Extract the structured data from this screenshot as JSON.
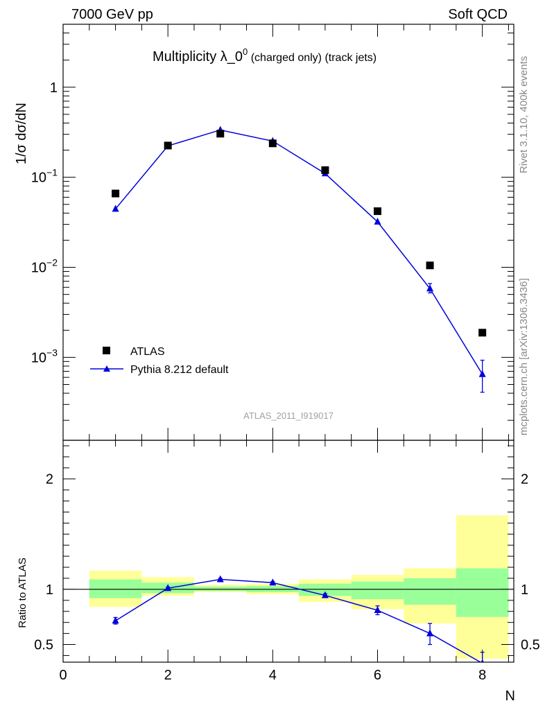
{
  "header": {
    "left": "7000 GeV pp",
    "right": "Soft QCD"
  },
  "title": {
    "main": "Multiplicity λ_0",
    "sup": "0",
    "sub": " (charged only) (track jets)"
  },
  "side_labels": {
    "rivet": "Rivet 3.1.10,  400k events",
    "mcplots": "mcplots.cern.ch [arXiv:1306.3436]"
  },
  "watermark": "ATLAS_2011_I919017",
  "legend": {
    "data_label": "ATLAS",
    "mc_label": "Pythia 8.212 default"
  },
  "colors": {
    "mc": "#0000dd",
    "band_inner": "#99ff99",
    "band_outer": "#ffff99",
    "data": "#000000"
  },
  "chart_data": [
    {
      "type": "scatter",
      "name": "main",
      "ylabel": "1/σ dσ/dN",
      "yscale": "log",
      "ylim": [
        0.00012,
        5
      ],
      "xlim": [
        0,
        8.6
      ],
      "ytick_labels": [
        "10^-3",
        "10^-2",
        "10^-1",
        "1"
      ],
      "ytick_values": [
        0.001,
        0.01,
        0.1,
        1
      ],
      "series": [
        {
          "name": "ATLAS",
          "x": [
            1,
            2,
            3,
            4,
            5,
            6,
            7,
            8
          ],
          "y": [
            0.066,
            0.225,
            0.305,
            0.238,
            0.12,
            0.042,
            0.0105,
            0.00188
          ]
        },
        {
          "name": "Pythia 8.212 default",
          "x": [
            1,
            2,
            3,
            4,
            5,
            6,
            7,
            8
          ],
          "y": [
            0.0445,
            0.223,
            0.335,
            0.252,
            0.11,
            0.032,
            0.0058,
            0.00065
          ],
          "err_low": [
            0,
            0,
            0,
            0,
            0,
            0,
            0.0006,
            0.00024
          ],
          "err_high": [
            0,
            0,
            0,
            0,
            0,
            0,
            0.0008,
            0.00028
          ]
        }
      ]
    },
    {
      "type": "line",
      "name": "ratio",
      "ylabel": "Ratio to ATLAS",
      "xlabel": "N",
      "ylim": [
        0.34,
        2.35
      ],
      "xlim": [
        0,
        8.6
      ],
      "xtick_values": [
        0,
        2,
        4,
        6,
        8
      ],
      "xtick_labels": [
        "0",
        "2",
        "4",
        "6",
        "8"
      ],
      "ytick_values": [
        0.5,
        1,
        2
      ],
      "ytick_labels": [
        "0.5",
        "1",
        "2"
      ],
      "bands": {
        "edges": [
          0.5,
          1.5,
          2.5,
          3.5,
          4.5,
          5.5,
          6.5,
          7.5,
          8.5
        ],
        "inner_low": [
          0.92,
          0.965,
          0.985,
          0.975,
          0.94,
          0.91,
          0.86,
          0.75
        ],
        "inner_high": [
          1.09,
          1.06,
          1.025,
          1.03,
          1.05,
          1.07,
          1.1,
          1.19
        ],
        "outer_low": [
          0.84,
          0.94,
          0.975,
          0.955,
          0.885,
          0.82,
          0.69,
          0.37
        ],
        "outer_high": [
          1.17,
          1.11,
          1.04,
          1.05,
          1.09,
          1.13,
          1.19,
          1.67
        ]
      },
      "series": [
        {
          "name": "Pythia 8.212 default",
          "x": [
            1,
            2,
            3,
            4,
            5,
            6,
            7,
            8
          ],
          "y": [
            0.715,
            1.01,
            1.09,
            1.06,
            0.945,
            0.81,
            0.6,
            0.33
          ],
          "err_low": [
            0.03,
            0.01,
            0.01,
            0.01,
            0.015,
            0.04,
            0.1,
            0.1
          ],
          "err_high": [
            0.03,
            0.01,
            0.01,
            0.01,
            0.015,
            0.04,
            0.09,
            0.1
          ]
        }
      ]
    }
  ]
}
